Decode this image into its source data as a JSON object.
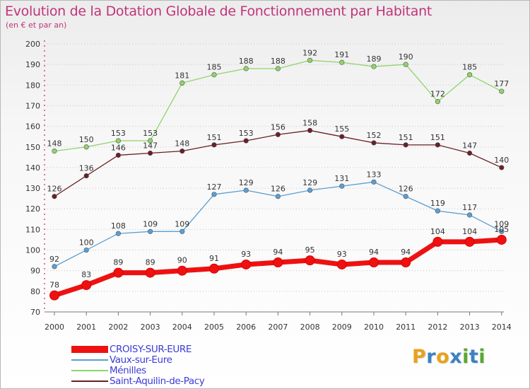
{
  "title": "Evolution de la Dotation Globale de Fonctionnement par Habitant",
  "subtitle": "(en € et par an)",
  "logo": [
    "P",
    "r",
    "o",
    "x",
    "i",
    "t",
    "i"
  ],
  "logo_colors": [
    "#e8a21a",
    "#3b82c4",
    "#e8a21a",
    "#3b82c4",
    "#5aa832",
    "#3b82c4",
    "#5aa832"
  ],
  "chart_data": {
    "type": "line",
    "title": "Evolution de la Dotation Globale de Fonctionnement par Habitant",
    "subtitle": "(en € et par an)",
    "xlabel": "",
    "ylabel": "",
    "ylim": [
      70,
      200
    ],
    "yticks": [
      70,
      80,
      90,
      100,
      110,
      120,
      130,
      140,
      150,
      160,
      170,
      180,
      190,
      200
    ],
    "grid": "horizontal dotted",
    "legend_position": "bottom-left",
    "categories": [
      "2000",
      "2001",
      "2002",
      "2003",
      "2004",
      "2005",
      "2006",
      "2007",
      "2008",
      "2009",
      "2010",
      "2011",
      "2012",
      "2013",
      "2014"
    ],
    "series": [
      {
        "name": "CROISY-SUR-EURE",
        "color": "#ee1111",
        "values": [
          78,
          83,
          89,
          89,
          90,
          91,
          93,
          94,
          95,
          93,
          94,
          94,
          104,
          104,
          105
        ]
      },
      {
        "name": "Vaux-sur-Eure",
        "color": "#5a9fd4",
        "values": [
          92,
          100,
          108,
          109,
          109,
          127,
          129,
          126,
          129,
          131,
          133,
          126,
          119,
          117,
          109
        ]
      },
      {
        "name": "Ménilles",
        "color": "#8fd46a",
        "values": [
          148,
          150,
          153,
          153,
          181,
          185,
          188,
          188,
          192,
          191,
          189,
          190,
          172,
          185,
          177
        ]
      },
      {
        "name": "Saint-Aquilin-de-Pacy",
        "color": "#6a1f24",
        "values": [
          126,
          136,
          146,
          147,
          148,
          151,
          153,
          156,
          158,
          155,
          152,
          151,
          151,
          147,
          140
        ]
      }
    ],
    "data_labels": {
      "CROISY-SUR-EURE": [
        "78",
        "83",
        "89",
        "89",
        "90",
        "91",
        "93",
        "94",
        "95",
        "93",
        "94",
        "94",
        "104",
        "104",
        "105"
      ],
      "Vaux-sur-Eure": [
        "92",
        "100",
        "108",
        "109",
        "109",
        "127",
        "129",
        "126",
        "129",
        "131",
        "133",
        "126",
        "119",
        "117",
        "109"
      ],
      "Ménilles": [
        "148",
        "150",
        "153",
        "153",
        "181",
        "185",
        "188",
        "188",
        "192",
        "191",
        "189",
        "190",
        "172",
        "185",
        "177"
      ],
      "Saint-Aquilin-de-Pacy": [
        "126",
        "136",
        "146",
        "147",
        "148",
        "151",
        "153",
        "156",
        "158",
        "155",
        "152",
        "151",
        "151",
        "147",
        "140"
      ]
    }
  }
}
